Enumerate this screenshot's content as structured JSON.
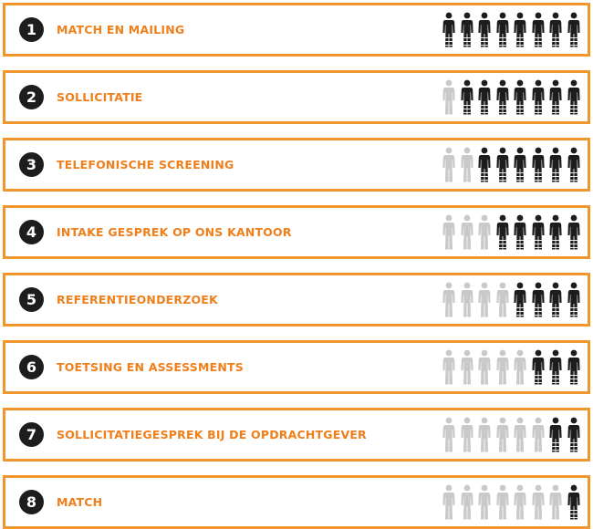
{
  "steps": [
    {
      "number": "1",
      "label": "MATCH EN MAILING",
      "total_people": 8,
      "active_people": 8
    },
    {
      "number": "2",
      "label": "SOLLICITATIE",
      "total_people": 8,
      "active_people": 7
    },
    {
      "number": "3",
      "label": "TELEFONISCHE SCREENING",
      "total_people": 8,
      "active_people": 6
    },
    {
      "number": "4",
      "label": "INTAKE GESPREK OP ONS KANTOOR",
      "total_people": 8,
      "active_people": 5
    },
    {
      "number": "5",
      "label": "REFERENTIEONDERZOEK",
      "total_people": 8,
      "active_people": 4
    },
    {
      "number": "6",
      "label": "TOETSING EN ASSESSMENTS",
      "total_people": 8,
      "active_people": 3
    },
    {
      "number": "7",
      "label": "SOLLICITATIEGESPREK BIJ DE OPDRACHTGEVER",
      "total_people": 8,
      "active_people": 2
    },
    {
      "number": "8",
      "label": "MATCH",
      "total_people": 8,
      "active_people": 1
    }
  ],
  "colors": {
    "border": "#f0962d",
    "label": "#ee7f1b",
    "badge": "#1d1d1b",
    "person_active": "#1d1d1b",
    "person_inactive": "#c9c9c9"
  },
  "icons": {
    "person": "person-icon"
  }
}
